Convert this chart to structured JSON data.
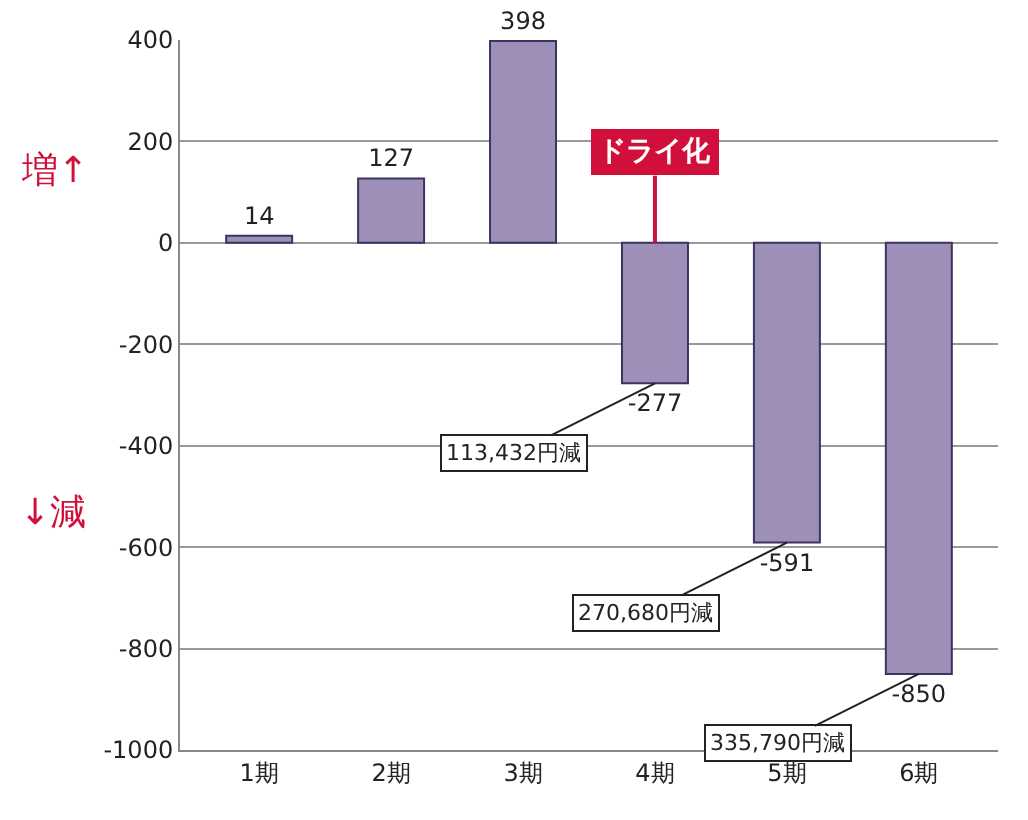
{
  "chart_data": {
    "type": "bar",
    "categories": [
      "1期",
      "2期",
      "3期",
      "4期",
      "5期",
      "6期"
    ],
    "values": [
      14,
      127,
      398,
      -277,
      -591,
      -850
    ],
    "color": "#9d8fb8",
    "data_labels": true,
    "ylim": [
      -1000,
      400
    ],
    "yticks": [
      -1000,
      -800,
      -600,
      -400,
      -200,
      0,
      200,
      400
    ],
    "grid": "y",
    "annotations": [
      "増↑",
      "↓減",
      {
        "text": "ドライ化",
        "x": "4期",
        "y": 0
      },
      {
        "text": "113,432円減",
        "x": "4期",
        "y": -277
      },
      {
        "text": "270,680円減",
        "x": "5期",
        "y": -591
      },
      {
        "text": "335,790円減",
        "x": "6期",
        "y": -850
      }
    ]
  }
}
